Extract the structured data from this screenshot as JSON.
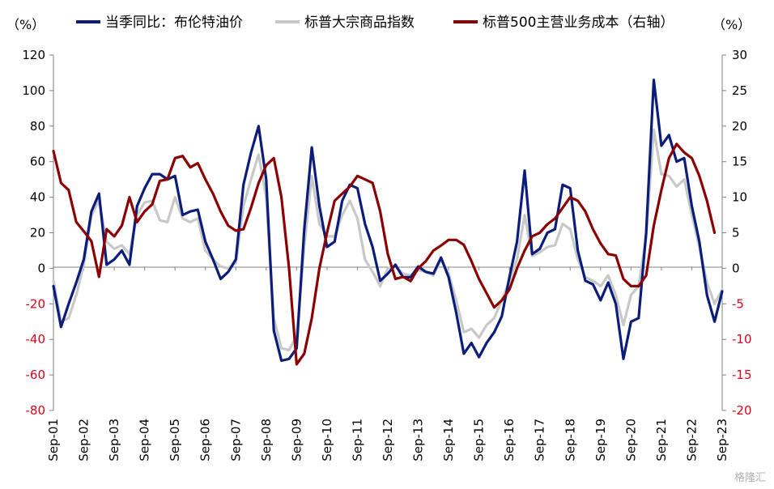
{
  "chart_data": {
    "type": "line",
    "left_unit": "（%）",
    "right_unit": "（%）",
    "left_axis": {
      "min": -80,
      "max": 120,
      "step": 20,
      "neg_color": "#e0001a"
    },
    "right_axis": {
      "min": -20,
      "max": 30,
      "step": 5,
      "neg_color": "#e0001a"
    },
    "x_range": [
      2001.67,
      2023.67
    ],
    "x_ticks": [
      "Sep-01",
      "Sep-02",
      "Sep-03",
      "Sep-04",
      "Sep-05",
      "Sep-06",
      "Sep-07",
      "Sep-08",
      "Sep-09",
      "Sep-10",
      "Sep-11",
      "Sep-12",
      "Sep-13",
      "Sep-14",
      "Sep-15",
      "Sep-16",
      "Sep-17",
      "Sep-18",
      "Sep-19",
      "Sep-20",
      "Sep-21",
      "Sep-22",
      "Sep-23"
    ],
    "legend_position": "top",
    "series": [
      {
        "name": "当季同比：布伦特油价",
        "color": "#0b1c7a",
        "axis": "left",
        "points": [
          [
            2001.67,
            -10
          ],
          [
            2001.92,
            -33
          ],
          [
            2002.17,
            -20
          ],
          [
            2002.42,
            -8
          ],
          [
            2002.67,
            5
          ],
          [
            2002.92,
            32
          ],
          [
            2003.17,
            42
          ],
          [
            2003.42,
            2
          ],
          [
            2003.67,
            5
          ],
          [
            2003.92,
            10
          ],
          [
            2004.17,
            2
          ],
          [
            2004.42,
            35
          ],
          [
            2004.67,
            45
          ],
          [
            2004.92,
            53
          ],
          [
            2005.17,
            53
          ],
          [
            2005.42,
            50
          ],
          [
            2005.67,
            52
          ],
          [
            2005.92,
            30
          ],
          [
            2006.17,
            32
          ],
          [
            2006.42,
            33
          ],
          [
            2006.67,
            15
          ],
          [
            2006.92,
            5
          ],
          [
            2007.17,
            -6
          ],
          [
            2007.42,
            -2
          ],
          [
            2007.67,
            5
          ],
          [
            2007.92,
            47
          ],
          [
            2008.17,
            65
          ],
          [
            2008.42,
            80
          ],
          [
            2008.67,
            50
          ],
          [
            2008.92,
            -35
          ],
          [
            2009.17,
            -52
          ],
          [
            2009.42,
            -51
          ],
          [
            2009.67,
            -45
          ],
          [
            2009.92,
            22
          ],
          [
            2010.17,
            68
          ],
          [
            2010.42,
            35
          ],
          [
            2010.67,
            12
          ],
          [
            2010.92,
            15
          ],
          [
            2011.17,
            38
          ],
          [
            2011.42,
            47
          ],
          [
            2011.67,
            45
          ],
          [
            2011.92,
            25
          ],
          [
            2012.17,
            12
          ],
          [
            2012.42,
            -7
          ],
          [
            2012.67,
            -3
          ],
          [
            2012.92,
            2
          ],
          [
            2013.17,
            -5
          ],
          [
            2013.42,
            -5
          ],
          [
            2013.67,
            1
          ],
          [
            2013.92,
            -2
          ],
          [
            2014.17,
            -3
          ],
          [
            2014.42,
            6
          ],
          [
            2014.67,
            -5
          ],
          [
            2014.92,
            -25
          ],
          [
            2015.17,
            -48
          ],
          [
            2015.42,
            -42
          ],
          [
            2015.67,
            -50
          ],
          [
            2015.92,
            -42
          ],
          [
            2016.17,
            -36
          ],
          [
            2016.42,
            -27
          ],
          [
            2016.67,
            -5
          ],
          [
            2016.92,
            15
          ],
          [
            2017.17,
            55
          ],
          [
            2017.42,
            8
          ],
          [
            2017.67,
            11
          ],
          [
            2017.92,
            20
          ],
          [
            2018.17,
            22
          ],
          [
            2018.42,
            47
          ],
          [
            2018.67,
            45
          ],
          [
            2018.92,
            10
          ],
          [
            2019.17,
            -7
          ],
          [
            2019.42,
            -9
          ],
          [
            2019.67,
            -18
          ],
          [
            2019.92,
            -8
          ],
          [
            2020.17,
            -20
          ],
          [
            2020.42,
            -51
          ],
          [
            2020.67,
            -30
          ],
          [
            2020.92,
            -28
          ],
          [
            2021.17,
            20
          ],
          [
            2021.42,
            106
          ],
          [
            2021.67,
            69
          ],
          [
            2021.92,
            75
          ],
          [
            2022.17,
            60
          ],
          [
            2022.42,
            62
          ],
          [
            2022.67,
            35
          ],
          [
            2022.92,
            15
          ],
          [
            2023.17,
            -15
          ],
          [
            2023.42,
            -30
          ],
          [
            2023.67,
            -13
          ]
        ]
      },
      {
        "name": "标普大宗商品指数",
        "color": "#c8c8c8",
        "axis": "left",
        "points": [
          [
            2001.67,
            -7
          ],
          [
            2001.92,
            -30
          ],
          [
            2002.17,
            -28
          ],
          [
            2002.42,
            -15
          ],
          [
            2002.67,
            2
          ],
          [
            2002.92,
            30
          ],
          [
            2003.17,
            38
          ],
          [
            2003.42,
            15
          ],
          [
            2003.67,
            11
          ],
          [
            2003.92,
            13
          ],
          [
            2004.17,
            8
          ],
          [
            2004.42,
            30
          ],
          [
            2004.67,
            37
          ],
          [
            2004.92,
            38
          ],
          [
            2005.17,
            27
          ],
          [
            2005.42,
            26
          ],
          [
            2005.67,
            40
          ],
          [
            2005.92,
            28
          ],
          [
            2006.17,
            26
          ],
          [
            2006.42,
            28
          ],
          [
            2006.67,
            10
          ],
          [
            2006.92,
            5
          ],
          [
            2007.17,
            1
          ],
          [
            2007.42,
            0
          ],
          [
            2007.67,
            3
          ],
          [
            2007.92,
            35
          ],
          [
            2008.17,
            50
          ],
          [
            2008.42,
            64
          ],
          [
            2008.67,
            40
          ],
          [
            2008.92,
            -28
          ],
          [
            2009.17,
            -45
          ],
          [
            2009.42,
            -46
          ],
          [
            2009.67,
            -38
          ],
          [
            2009.92,
            12
          ],
          [
            2010.17,
            52
          ],
          [
            2010.42,
            25
          ],
          [
            2010.67,
            18
          ],
          [
            2010.92,
            18
          ],
          [
            2011.17,
            30
          ],
          [
            2011.42,
            38
          ],
          [
            2011.67,
            28
          ],
          [
            2011.92,
            5
          ],
          [
            2012.17,
            -2
          ],
          [
            2012.42,
            -10
          ],
          [
            2012.67,
            0
          ],
          [
            2012.92,
            1
          ],
          [
            2013.17,
            -3
          ],
          [
            2013.42,
            -4
          ],
          [
            2013.67,
            -1
          ],
          [
            2013.92,
            -2
          ],
          [
            2014.17,
            -4
          ],
          [
            2014.42,
            5
          ],
          [
            2014.67,
            -3
          ],
          [
            2014.92,
            -18
          ],
          [
            2015.17,
            -36
          ],
          [
            2015.42,
            -34
          ],
          [
            2015.67,
            -39
          ],
          [
            2015.92,
            -32
          ],
          [
            2016.17,
            -28
          ],
          [
            2016.42,
            -18
          ],
          [
            2016.67,
            -7
          ],
          [
            2016.92,
            5
          ],
          [
            2017.17,
            30
          ],
          [
            2017.42,
            7
          ],
          [
            2017.67,
            9
          ],
          [
            2017.92,
            12
          ],
          [
            2018.17,
            13
          ],
          [
            2018.42,
            25
          ],
          [
            2018.67,
            22
          ],
          [
            2018.92,
            5
          ],
          [
            2019.17,
            -5
          ],
          [
            2019.42,
            -7
          ],
          [
            2019.67,
            -10
          ],
          [
            2019.92,
            -4
          ],
          [
            2020.17,
            -15
          ],
          [
            2020.42,
            -32
          ],
          [
            2020.67,
            -15
          ],
          [
            2020.92,
            -10
          ],
          [
            2021.17,
            18
          ],
          [
            2021.42,
            78
          ],
          [
            2021.67,
            53
          ],
          [
            2021.92,
            52
          ],
          [
            2022.17,
            46
          ],
          [
            2022.42,
            50
          ],
          [
            2022.67,
            30
          ],
          [
            2022.92,
            12
          ],
          [
            2023.17,
            -8
          ],
          [
            2023.42,
            -20
          ],
          [
            2023.67,
            -12
          ]
        ]
      },
      {
        "name": "标普500主营业务成本（右轴）",
        "color": "#8b0000",
        "axis": "right",
        "points": [
          [
            2001.67,
            16.5
          ],
          [
            2001.92,
            12
          ],
          [
            2002.17,
            11
          ],
          [
            2002.42,
            6.5
          ],
          [
            2002.67,
            5.2
          ],
          [
            2002.92,
            3.8
          ],
          [
            2003.17,
            -1.2
          ],
          [
            2003.42,
            5.5
          ],
          [
            2003.67,
            4.5
          ],
          [
            2003.92,
            6
          ],
          [
            2004.17,
            10
          ],
          [
            2004.42,
            6.5
          ],
          [
            2004.67,
            8
          ],
          [
            2004.92,
            9
          ],
          [
            2005.17,
            12.3
          ],
          [
            2005.42,
            12.5
          ],
          [
            2005.67,
            15.5
          ],
          [
            2005.92,
            15.8
          ],
          [
            2006.17,
            14.2
          ],
          [
            2006.42,
            14.8
          ],
          [
            2006.67,
            12.5
          ],
          [
            2006.92,
            10.5
          ],
          [
            2007.17,
            8
          ],
          [
            2007.42,
            6
          ],
          [
            2007.67,
            5.3
          ],
          [
            2007.92,
            5.5
          ],
          [
            2008.17,
            8.5
          ],
          [
            2008.42,
            12
          ],
          [
            2008.67,
            14.5
          ],
          [
            2008.92,
            15.5
          ],
          [
            2009.17,
            10
          ],
          [
            2009.42,
            0
          ],
          [
            2009.67,
            -13.5
          ],
          [
            2009.92,
            -12
          ],
          [
            2010.17,
            -7
          ],
          [
            2010.42,
            0
          ],
          [
            2010.67,
            5
          ],
          [
            2010.92,
            9.5
          ],
          [
            2011.17,
            10.5
          ],
          [
            2011.42,
            11.5
          ],
          [
            2011.67,
            13
          ],
          [
            2011.92,
            12.5
          ],
          [
            2012.17,
            12
          ],
          [
            2012.42,
            8
          ],
          [
            2012.67,
            2
          ],
          [
            2012.92,
            -1.5
          ],
          [
            2013.17,
            -1.2
          ],
          [
            2013.42,
            -1.8
          ],
          [
            2013.67,
            0
          ],
          [
            2013.92,
            1
          ],
          [
            2014.17,
            2.5
          ],
          [
            2014.42,
            3.2
          ],
          [
            2014.67,
            4
          ],
          [
            2014.92,
            4
          ],
          [
            2015.17,
            3.3
          ],
          [
            2015.42,
            1
          ],
          [
            2015.67,
            -1.5
          ],
          [
            2015.92,
            -3.5
          ],
          [
            2016.17,
            -5.5
          ],
          [
            2016.42,
            -4.5
          ],
          [
            2016.67,
            -3
          ],
          [
            2016.92,
            0
          ],
          [
            2017.17,
            2.5
          ],
          [
            2017.42,
            4.5
          ],
          [
            2017.67,
            5
          ],
          [
            2017.92,
            6.2
          ],
          [
            2018.17,
            7
          ],
          [
            2018.42,
            8.5
          ],
          [
            2018.67,
            10
          ],
          [
            2018.92,
            9.5
          ],
          [
            2019.17,
            8
          ],
          [
            2019.42,
            5.5
          ],
          [
            2019.67,
            3.5
          ],
          [
            2019.92,
            2
          ],
          [
            2020.17,
            1.8
          ],
          [
            2020.42,
            -1.5
          ],
          [
            2020.67,
            -2.5
          ],
          [
            2020.92,
            -2.5
          ],
          [
            2021.17,
            -1
          ],
          [
            2021.42,
            6
          ],
          [
            2021.67,
            11
          ],
          [
            2021.92,
            15.5
          ],
          [
            2022.17,
            17.5
          ],
          [
            2022.42,
            16.3
          ],
          [
            2022.67,
            15.5
          ],
          [
            2022.92,
            13
          ],
          [
            2023.17,
            9.5
          ],
          [
            2023.42,
            5
          ]
        ]
      }
    ]
  },
  "watermark": "格隆汇"
}
